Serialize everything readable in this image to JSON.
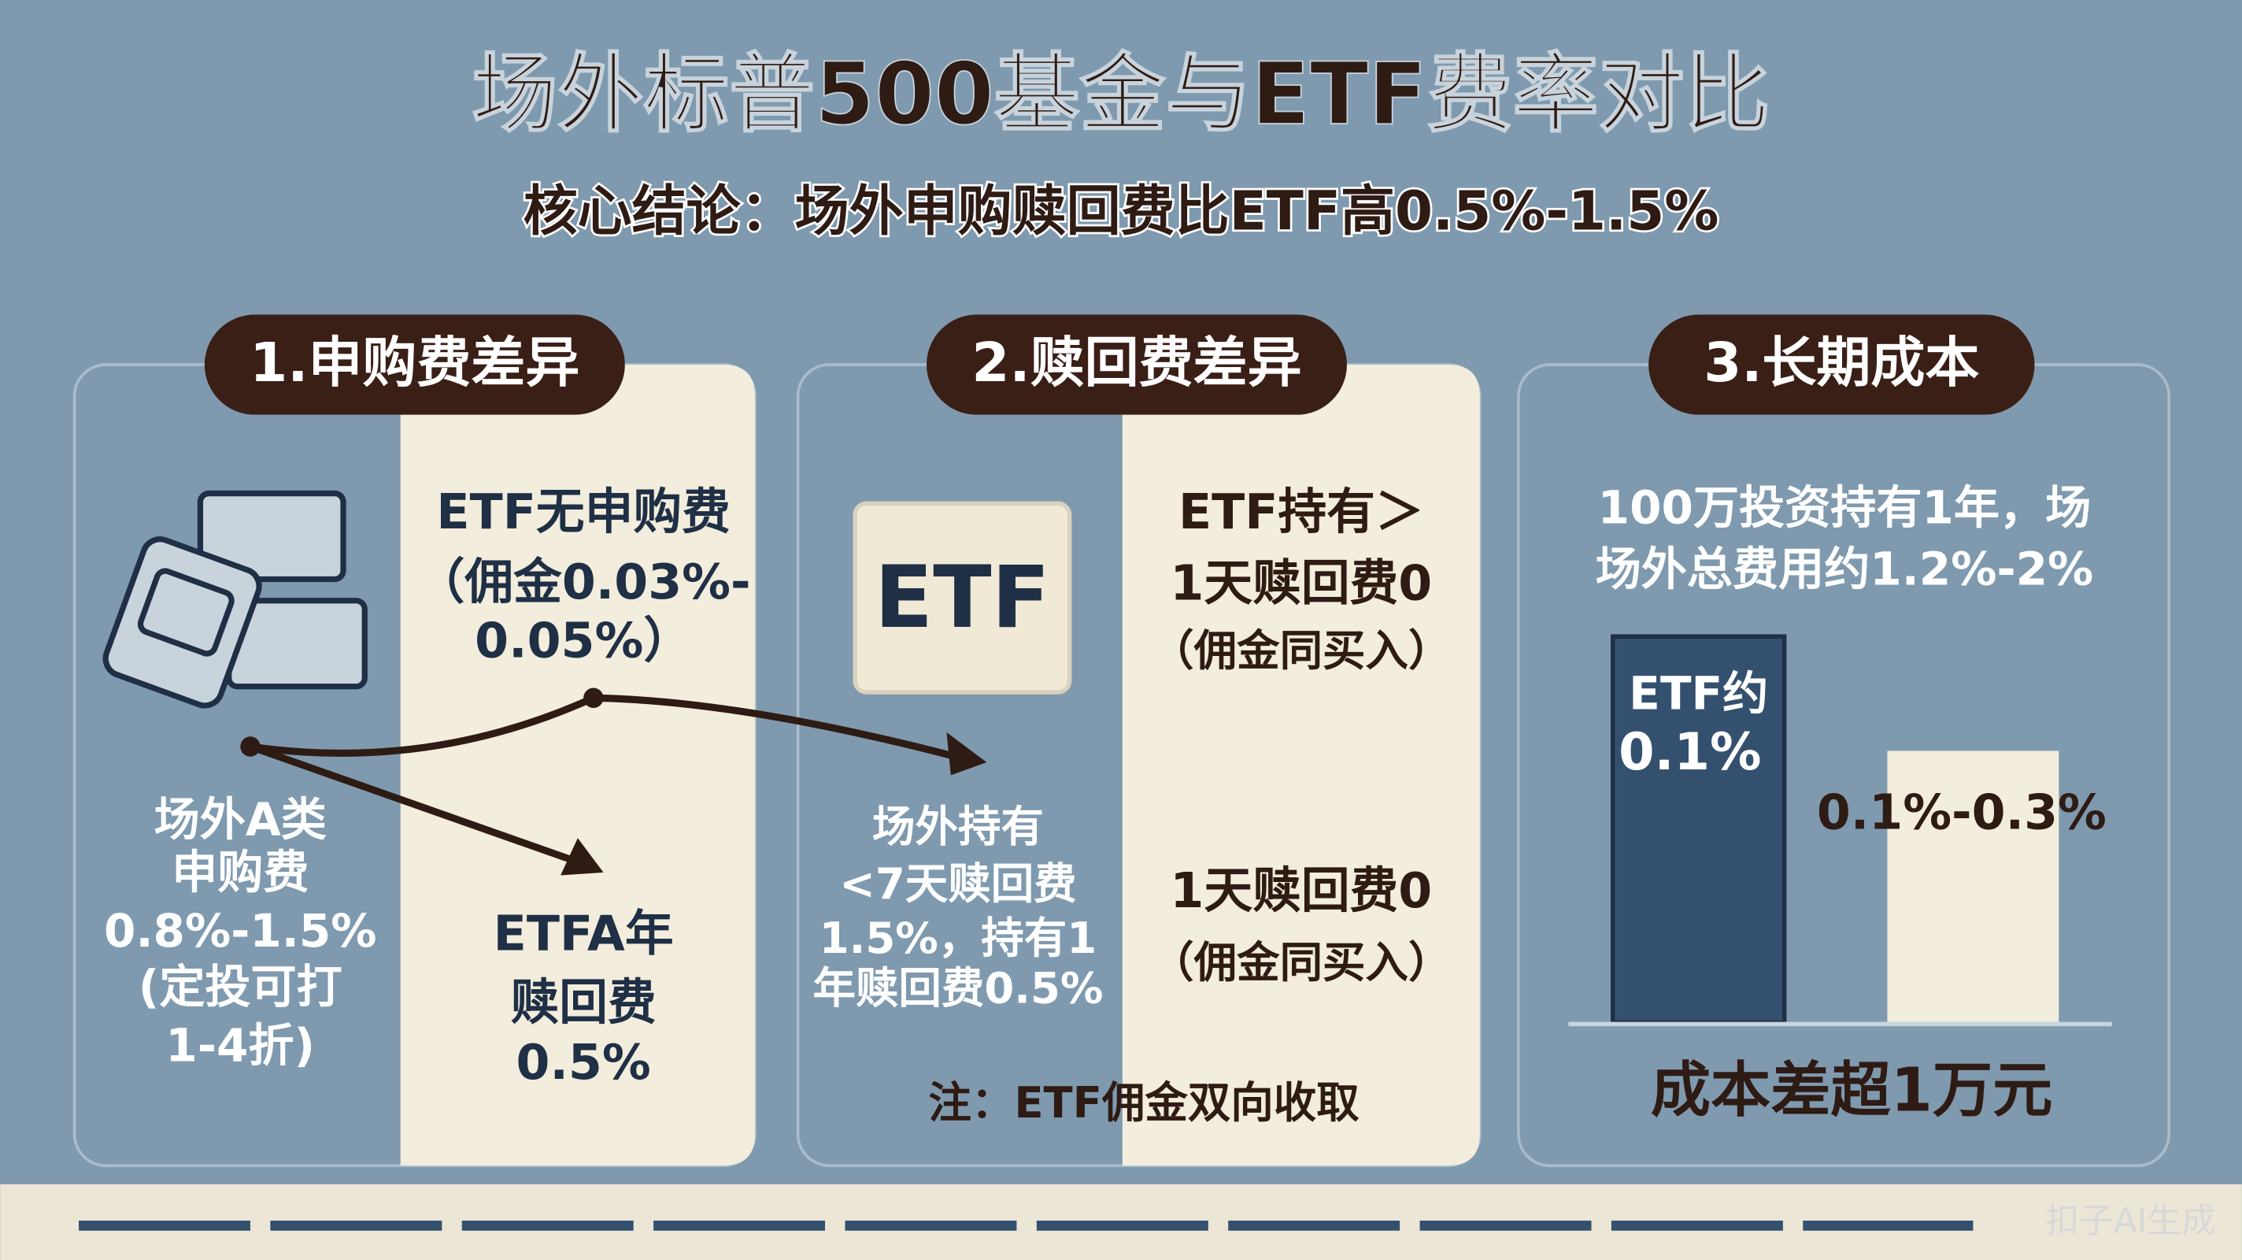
{
  "title": "场外标普500基金与ETF费率对比",
  "subtitle": "核心结论：场外申购赎回费比ETF高0.5%-1.5%",
  "panels": [
    {
      "header": "1.申购费差异",
      "etf_fee": [
        "ETF无申购费",
        "（佣金0.03%-",
        "0.05%）"
      ],
      "offsite_fee": [
        "场外A类",
        "申购费",
        "0.8%-1.5%",
        "(定投可打",
        "1-4折)"
      ],
      "etf_redeem": [
        "ETFA年",
        "赎回费",
        "0.5%"
      ]
    },
    {
      "header": "2.赎回费差异",
      "logo": "ETF",
      "etf_hold": [
        "ETF持有＞",
        "1天赎回费0",
        "（佣金同买入）"
      ],
      "etf_hold_2": [
        "1天赎回费0",
        "（佣金同买入）"
      ],
      "offsite_hold": [
        "场外持有",
        "<7天赎回费",
        "1.5%，持有1",
        "年赎回费0.5%"
      ],
      "note": "注：ETF佣金双向收取"
    },
    {
      "header": "3.长期成本",
      "intro": [
        "100万投资持有1年，场",
        "场外总费用约1.2%-2%"
      ],
      "etf_bar": [
        "ETF约",
        "0.1%"
      ],
      "other_bar": "0.1%-0.3%",
      "conclusion": "成本差超1万元"
    }
  ],
  "watermark": "扣子AI生成"
}
